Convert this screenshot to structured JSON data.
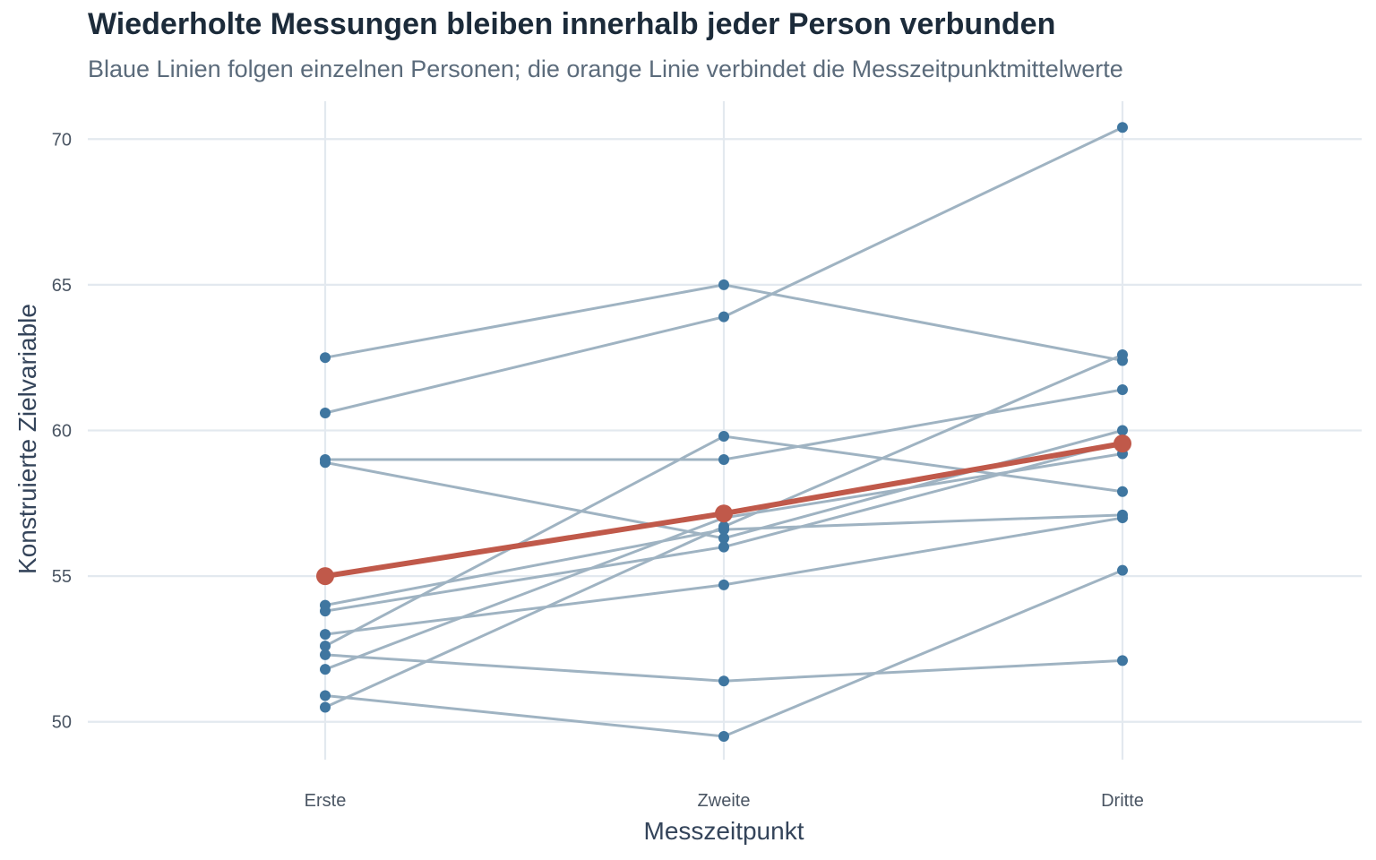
{
  "chart_data": {
    "type": "line",
    "title": "Wiederholte Messungen bleiben innerhalb jeder Person verbunden",
    "subtitle": "Blaue Linien folgen einzelnen Personen; die orange Linie verbindet die Messzeitpunktmittelwerte",
    "xlabel": "Messzeitpunkt",
    "ylabel": "Konstruierte Zielvariable",
    "categories": [
      "Erste",
      "Zweite",
      "Dritte"
    ],
    "ylim": [
      48.7,
      71.3
    ],
    "yticks": [
      50,
      55,
      60,
      65,
      70
    ],
    "grid": true,
    "legend": "none",
    "colors": {
      "subjects": "#9fb3c2",
      "subject_points": "#3f76a0",
      "mean": "#c0594a"
    },
    "subjects": [
      {
        "values": [
          62.5,
          65.0,
          62.4
        ]
      },
      {
        "values": [
          60.6,
          63.9,
          70.4
        ]
      },
      {
        "values": [
          59.0,
          59.0,
          61.4
        ]
      },
      {
        "values": [
          58.9,
          56.3,
          60.0
        ]
      },
      {
        "values": [
          54.0,
          56.6,
          57.1
        ]
      },
      {
        "values": [
          53.8,
          56.0,
          59.6
        ]
      },
      {
        "values": [
          53.0,
          54.7,
          57.0
        ]
      },
      {
        "values": [
          52.6,
          59.8,
          57.9
        ]
      },
      {
        "values": [
          52.3,
          51.4,
          52.1
        ]
      },
      {
        "values": [
          51.8,
          57.0,
          59.2
        ]
      },
      {
        "values": [
          50.9,
          49.5,
          55.2
        ]
      },
      {
        "values": [
          50.5,
          56.7,
          62.6
        ]
      }
    ],
    "mean": {
      "values": [
        55.0,
        57.15,
        59.55
      ]
    }
  }
}
